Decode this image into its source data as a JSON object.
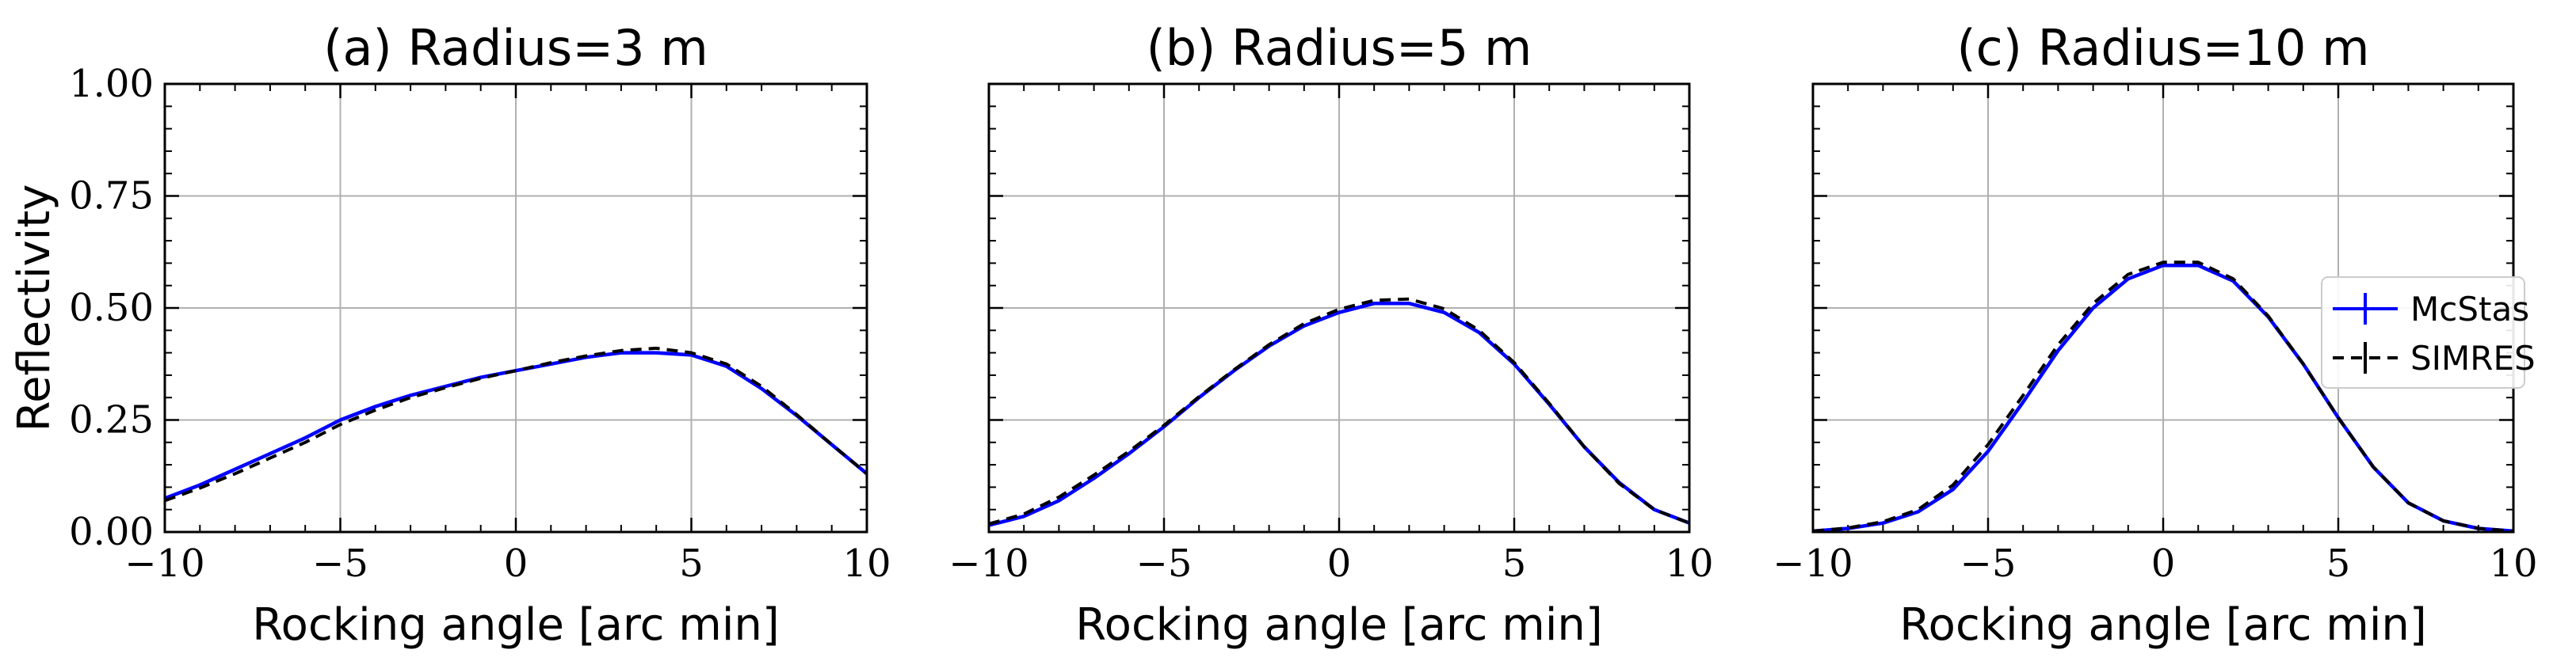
{
  "chart_data": [
    {
      "type": "line",
      "title": "(a) Radius=3 m",
      "xlabel": "Rocking angle [arc min]",
      "ylabel": "Reflectivity",
      "xlim": [
        -10,
        10
      ],
      "ylim": [
        0,
        1
      ],
      "xticks": [
        -10,
        -5,
        0,
        5,
        10
      ],
      "xtick_labels": [
        "−10",
        "−5",
        "0",
        "5",
        "10"
      ],
      "yticks": [
        0,
        0.25,
        0.5,
        0.75,
        1.0
      ],
      "ytick_labels": [
        "0.00",
        "0.25",
        "0.50",
        "0.75",
        "1.00"
      ],
      "show_yticklabels": true,
      "grid": true,
      "x": [
        -10,
        -9,
        -8,
        -7,
        -6,
        -5,
        -4,
        -3,
        -2,
        -1,
        0,
        1,
        2,
        3,
        4,
        5,
        6,
        7,
        8,
        9,
        10
      ],
      "series": [
        {
          "name": "McStas",
          "color": "#0000ff",
          "style": "solid",
          "values": [
            0.075,
            0.105,
            0.14,
            0.175,
            0.21,
            0.25,
            0.28,
            0.305,
            0.325,
            0.345,
            0.36,
            0.375,
            0.39,
            0.4,
            0.4,
            0.395,
            0.37,
            0.32,
            0.26,
            0.195,
            0.13
          ]
        },
        {
          "name": "SIMRES",
          "color": "#000000",
          "style": "dashed",
          "values": [
            0.07,
            0.098,
            0.13,
            0.165,
            0.2,
            0.24,
            0.272,
            0.3,
            0.322,
            0.343,
            0.36,
            0.378,
            0.393,
            0.405,
            0.41,
            0.4,
            0.375,
            0.325,
            0.262,
            0.195,
            0.13
          ]
        }
      ]
    },
    {
      "type": "line",
      "title": "(b) Radius=5 m",
      "xlabel": "Rocking angle [arc min]",
      "ylabel": "",
      "xlim": [
        -10,
        10
      ],
      "ylim": [
        0,
        1
      ],
      "xticks": [
        -10,
        -5,
        0,
        5,
        10
      ],
      "xtick_labels": [
        "−10",
        "−5",
        "0",
        "5",
        "10"
      ],
      "yticks": [
        0,
        0.25,
        0.5,
        0.75,
        1.0
      ],
      "ytick_labels": [
        "0.00",
        "0.25",
        "0.50",
        "0.75",
        "1.00"
      ],
      "show_yticklabels": false,
      "grid": true,
      "x": [
        -10,
        -9,
        -8,
        -7,
        -6,
        -5,
        -4,
        -3,
        -2,
        -1,
        0,
        1,
        2,
        3,
        4,
        5,
        6,
        7,
        8,
        9,
        10
      ],
      "series": [
        {
          "name": "McStas",
          "color": "#0000ff",
          "style": "solid",
          "values": [
            0.015,
            0.035,
            0.07,
            0.12,
            0.175,
            0.235,
            0.3,
            0.36,
            0.415,
            0.46,
            0.49,
            0.51,
            0.51,
            0.49,
            0.445,
            0.375,
            0.285,
            0.19,
            0.11,
            0.05,
            0.02
          ]
        },
        {
          "name": "SIMRES",
          "color": "#000000",
          "style": "dashed",
          "values": [
            0.018,
            0.04,
            0.078,
            0.127,
            0.18,
            0.238,
            0.302,
            0.362,
            0.418,
            0.465,
            0.497,
            0.517,
            0.52,
            0.498,
            0.45,
            0.378,
            0.287,
            0.19,
            0.108,
            0.05,
            0.02
          ]
        }
      ]
    },
    {
      "type": "line",
      "title": "(c) Radius=10 m",
      "xlabel": "Rocking angle [arc min]",
      "ylabel": "",
      "xlim": [
        -10,
        10
      ],
      "ylim": [
        0,
        1
      ],
      "xticks": [
        -10,
        -5,
        0,
        5,
        10
      ],
      "xtick_labels": [
        "−10",
        "−5",
        "0",
        "5",
        "10"
      ],
      "yticks": [
        0,
        0.25,
        0.5,
        0.75,
        1.0
      ],
      "ytick_labels": [
        "0.00",
        "0.25",
        "0.50",
        "0.75",
        "1.00"
      ],
      "show_yticklabels": false,
      "grid": true,
      "legend": "right",
      "x": [
        -10,
        -9,
        -8,
        -7,
        -6,
        -5,
        -4,
        -3,
        -2,
        -1,
        0,
        1,
        2,
        3,
        4,
        5,
        6,
        7,
        8,
        9,
        10
      ],
      "series": [
        {
          "name": "McStas",
          "color": "#0000ff",
          "style": "solid",
          "values": [
            0.002,
            0.008,
            0.02,
            0.045,
            0.095,
            0.18,
            0.29,
            0.405,
            0.5,
            0.565,
            0.595,
            0.595,
            0.56,
            0.48,
            0.375,
            0.255,
            0.145,
            0.065,
            0.025,
            0.008,
            0.002
          ]
        },
        {
          "name": "SIMRES",
          "color": "#000000",
          "style": "dashed",
          "values": [
            0.002,
            0.009,
            0.023,
            0.05,
            0.105,
            0.195,
            0.305,
            0.418,
            0.51,
            0.575,
            0.602,
            0.602,
            0.565,
            0.482,
            0.375,
            0.255,
            0.145,
            0.065,
            0.025,
            0.008,
            0.002
          ]
        }
      ]
    }
  ]
}
